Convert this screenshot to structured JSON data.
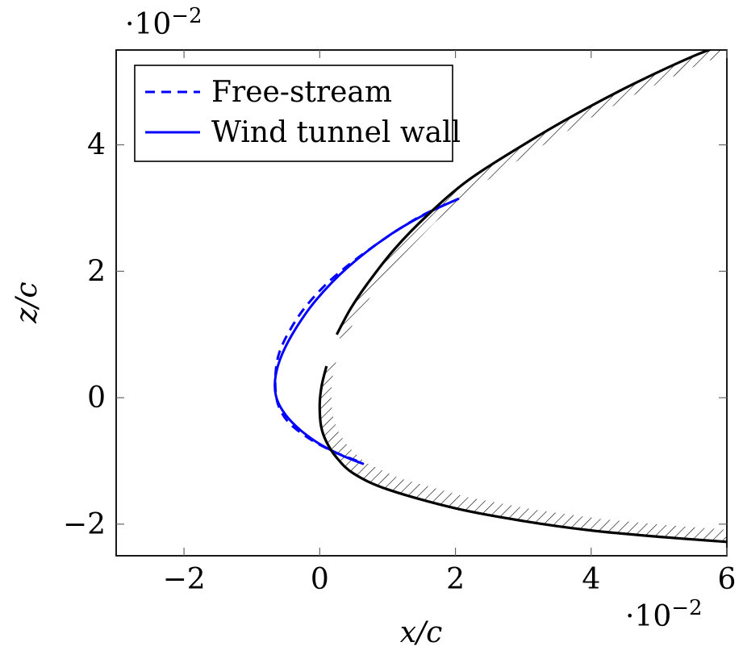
{
  "chart_data": {
    "type": "line",
    "xlabel": "x/c",
    "ylabel": "z/c",
    "x_multiplier_label": "·10",
    "x_multiplier_exp": "−2",
    "y_multiplier_label": "·10",
    "y_multiplier_exp": "−2",
    "xlim": [
      -3,
      6
    ],
    "ylim": [
      -2.5,
      5.5
    ],
    "xticks": [
      -2,
      0,
      2,
      4,
      6
    ],
    "xtick_labels": [
      "−2",
      "0",
      "2",
      "4",
      "6"
    ],
    "yticks": [
      -2,
      0,
      2,
      4
    ],
    "ytick_labels": [
      "−2",
      "0",
      "2",
      "4"
    ],
    "grid": false,
    "legend_position": "top-left",
    "series": [
      {
        "name": "Free-stream",
        "color": "#0000ff",
        "style": "dashed",
        "x": [
          0.55,
          0.2,
          -0.15,
          -0.45,
          -0.6,
          -0.65,
          -0.65,
          -0.6,
          -0.45,
          -0.2,
          0.2,
          0.8,
          1.45,
          2.05
        ],
        "y": [
          -1.0,
          -0.85,
          -0.65,
          -0.4,
          -0.15,
          0.1,
          0.4,
          0.7,
          1.05,
          1.45,
          1.9,
          2.4,
          2.85,
          3.15
        ]
      },
      {
        "name": "Wind tunnel wall",
        "color": "#0000ff",
        "style": "solid",
        "x": [
          0.65,
          0.3,
          -0.05,
          -0.35,
          -0.55,
          -0.65,
          -0.65,
          -0.55,
          -0.35,
          -0.05,
          0.4,
          1.0,
          1.55,
          2.05
        ],
        "y": [
          -1.05,
          -0.9,
          -0.7,
          -0.45,
          -0.2,
          0.05,
          0.35,
          0.7,
          1.1,
          1.55,
          2.05,
          2.55,
          2.9,
          3.15
        ]
      },
      {
        "name": "",
        "color": "#000000",
        "style": "solid",
        "x": [
          6.0,
          5.0,
          4.0,
          3.0,
          2.0,
          1.0,
          0.5,
          0.25,
          0.1,
          0.02,
          0.0,
          0.03,
          0.1
        ],
        "y": [
          -2.28,
          -2.2,
          -2.1,
          -1.95,
          -1.75,
          -1.45,
          -1.2,
          -0.95,
          -0.7,
          -0.45,
          -0.1,
          0.2,
          0.5
        ]
      },
      {
        "name": "",
        "color": "#000000",
        "style": "solid",
        "x": [
          0.25,
          0.45,
          0.7,
          1.1,
          1.6,
          2.2,
          3.0,
          3.8,
          4.6,
          5.5,
          6.0
        ],
        "y": [
          1.0,
          1.4,
          1.8,
          2.35,
          2.9,
          3.45,
          4.0,
          4.5,
          4.95,
          5.4,
          5.6
        ]
      }
    ]
  }
}
